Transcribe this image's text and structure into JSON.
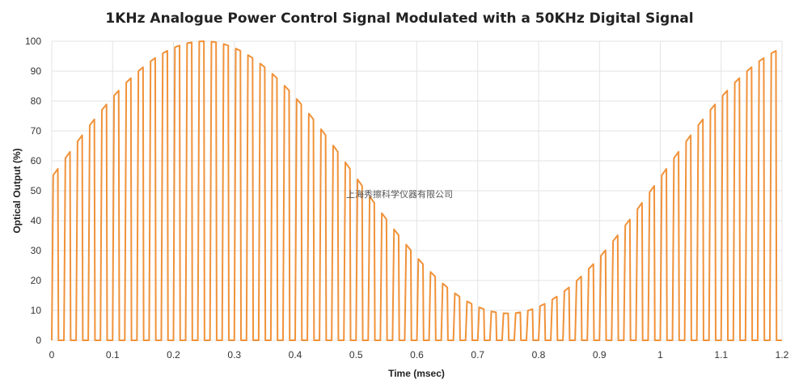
{
  "chart_data": {
    "type": "line",
    "title": "1KHz Analogue Power Control Signal Modulated with a 50KHz Digital Signal",
    "xlabel": "Time (msec)",
    "ylabel": "Optical Output (%)",
    "xlim": [
      0,
      1.2
    ],
    "ylim": [
      0,
      100
    ],
    "x_ticks": [
      0,
      0.1,
      0.2,
      0.3,
      0.4,
      0.5,
      0.6,
      0.7,
      0.8,
      0.9,
      1,
      1.1,
      1.2
    ],
    "y_ticks": [
      0,
      10,
      20,
      30,
      40,
      50,
      60,
      70,
      80,
      90,
      100
    ],
    "x_tick_labels": [
      "0",
      "0.1",
      "0.2",
      "0.3",
      "0.4",
      "0.5",
      "0.6",
      "0.7",
      "0.8",
      "0.9",
      "1",
      "1.1",
      "1.2"
    ],
    "y_tick_labels": [
      "0",
      "10",
      "20",
      "30",
      "40",
      "50",
      "60",
      "70",
      "80",
      "90",
      "100"
    ],
    "grid": true,
    "legend": "none",
    "series": [
      {
        "color": "#f0923a",
        "analogue_frequency_khz": 1,
        "digital_frequency_khz": 50,
        "envelope_center": 54.5,
        "envelope_amplitude": 45.5,
        "off_level": 0
      }
    ]
  },
  "watermark": "上海秀擦科学仪器有限公司"
}
